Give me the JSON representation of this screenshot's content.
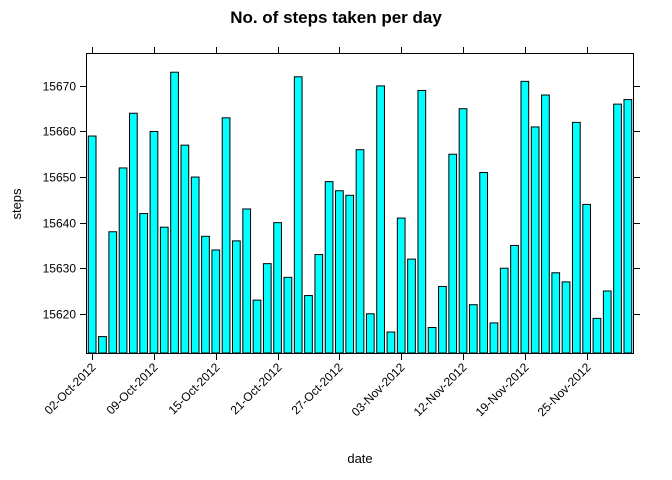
{
  "chart_data": {
    "type": "bar",
    "title": "No. of steps taken per day",
    "xlabel": "date",
    "ylabel": "steps",
    "ylim": [
      15611.4,
      15677
    ],
    "yticks": [
      15620,
      15630,
      15640,
      15650,
      15660,
      15670
    ],
    "x_tick_labels": [
      {
        "index": 0,
        "label": "02-Oct-2012"
      },
      {
        "index": 6,
        "label": "09-Oct-2012"
      },
      {
        "index": 12,
        "label": "15-Oct-2012"
      },
      {
        "index": 18,
        "label": "21-Oct-2012"
      },
      {
        "index": 24,
        "label": "27-Oct-2012"
      },
      {
        "index": 30,
        "label": "03-Nov-2012"
      },
      {
        "index": 36,
        "label": "12-Nov-2012"
      },
      {
        "index": 42,
        "label": "19-Nov-2012"
      },
      {
        "index": 48,
        "label": "25-Nov-2012"
      }
    ],
    "values": [
      15659,
      15615,
      15638,
      15652,
      15664,
      15642,
      15660,
      15639,
      15673,
      15657,
      15650,
      15637,
      15634,
      15663,
      15636,
      15643,
      15623,
      15631,
      15640,
      15628,
      15672,
      15624,
      15633,
      15649,
      15647,
      15646,
      15656,
      15620,
      15670,
      15616,
      15641,
      15632,
      15669,
      15617,
      15626,
      15655,
      15665,
      15622,
      15651,
      15618,
      15630,
      15635,
      15671,
      15661,
      15668,
      15629,
      15627,
      15662,
      15644,
      15619,
      15625,
      15666,
      15667
    ],
    "bar_color": "#00ffff",
    "grid": false
  }
}
